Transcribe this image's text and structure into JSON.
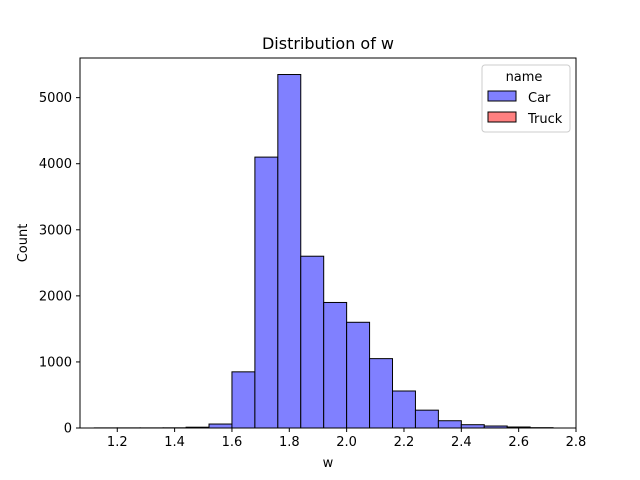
{
  "chart_data": {
    "type": "bar",
    "title": "Distribution of w",
    "xlabel": "w",
    "ylabel": "Count",
    "xlim": [
      1.07,
      2.8
    ],
    "ylim": [
      0,
      5600
    ],
    "x_ticks": [
      "1.2",
      "1.4",
      "1.6",
      "1.8",
      "2.0",
      "2.2",
      "2.4",
      "2.6",
      "2.8"
    ],
    "y_ticks": [
      "0",
      "1000",
      "2000",
      "3000",
      "4000",
      "5000"
    ],
    "grid": false,
    "legend": {
      "title": "name",
      "placement": "top-right",
      "entries": [
        {
          "label": "Car",
          "color": "#8080ff"
        },
        {
          "label": "Truck",
          "color": "#ff8080"
        }
      ]
    },
    "bin_width": 0.08,
    "series": [
      {
        "name": "Car",
        "color": "#8080ff",
        "bin_starts": [
          1.12,
          1.2,
          1.28,
          1.36,
          1.44,
          1.52,
          1.6,
          1.68,
          1.76,
          1.84,
          1.92,
          2.0,
          2.08,
          2.16,
          2.24,
          2.32,
          2.4,
          2.48,
          2.56,
          2.64
        ],
        "values": [
          2,
          2,
          2,
          3,
          12,
          60,
          850,
          4100,
          5350,
          2600,
          1900,
          1600,
          1050,
          560,
          270,
          110,
          50,
          30,
          15,
          5
        ]
      },
      {
        "name": "Truck",
        "color": "#ff8080",
        "bin_starts": [],
        "values": []
      }
    ]
  }
}
